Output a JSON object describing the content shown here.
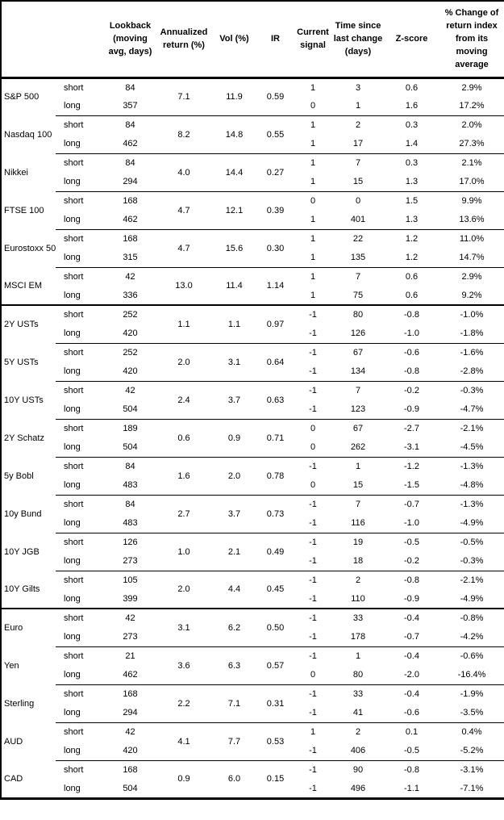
{
  "table": {
    "columns": [
      {
        "key": "name",
        "label": ""
      },
      {
        "key": "horizon",
        "label": ""
      },
      {
        "key": "lookback",
        "label": "Lookback\n(moving\navg, days)"
      },
      {
        "key": "annualized_return",
        "label": "Annualized\nreturn (%)"
      },
      {
        "key": "vol",
        "label": "Vol (%)"
      },
      {
        "key": "ir",
        "label": "IR"
      },
      {
        "key": "signal",
        "label": "Current\nsignal"
      },
      {
        "key": "time_since",
        "label": "Time since\nlast change\n(days)"
      },
      {
        "key": "z_score",
        "label": "Z-score"
      },
      {
        "key": "pct_change",
        "label": "% Change of\nreturn index\nfrom its\nmoving\naverage"
      }
    ],
    "groups": [
      {
        "name": "S&P 500",
        "separator": "none",
        "annualized_return": "7.1",
        "vol": "11.9",
        "ir": "0.59",
        "rows": [
          {
            "horizon": "short",
            "lookback": "84",
            "signal": "1",
            "time_since": "3",
            "z_score": "0.6",
            "pct_change": "2.9%"
          },
          {
            "horizon": "long",
            "lookback": "357",
            "signal": "0",
            "time_since": "1",
            "z_score": "1.6",
            "pct_change": "17.2%"
          }
        ]
      },
      {
        "name": "Nasdaq 100",
        "separator": "thin",
        "annualized_return": "8.2",
        "vol": "14.8",
        "ir": "0.55",
        "rows": [
          {
            "horizon": "short",
            "lookback": "84",
            "signal": "1",
            "time_since": "2",
            "z_score": "0.3",
            "pct_change": "2.0%"
          },
          {
            "horizon": "long",
            "lookback": "462",
            "signal": "1",
            "time_since": "17",
            "z_score": "1.4",
            "pct_change": "27.3%"
          }
        ]
      },
      {
        "name": "Nikkei",
        "separator": "thin",
        "annualized_return": "4.0",
        "vol": "14.4",
        "ir": "0.27",
        "rows": [
          {
            "horizon": "short",
            "lookback": "84",
            "signal": "1",
            "time_since": "7",
            "z_score": "0.3",
            "pct_change": "2.1%"
          },
          {
            "horizon": "long",
            "lookback": "294",
            "signal": "1",
            "time_since": "15",
            "z_score": "1.3",
            "pct_change": "17.0%"
          }
        ]
      },
      {
        "name": "FTSE 100",
        "separator": "thin",
        "annualized_return": "4.7",
        "vol": "12.1",
        "ir": "0.39",
        "rows": [
          {
            "horizon": "short",
            "lookback": "168",
            "signal": "0",
            "time_since": "0",
            "z_score": "1.5",
            "pct_change": "9.9%"
          },
          {
            "horizon": "long",
            "lookback": "462",
            "signal": "1",
            "time_since": "401",
            "z_score": "1.3",
            "pct_change": "13.6%"
          }
        ]
      },
      {
        "name": "Eurostoxx 50",
        "separator": "thin",
        "annualized_return": "4.7",
        "vol": "15.6",
        "ir": "0.30",
        "rows": [
          {
            "horizon": "short",
            "lookback": "168",
            "signal": "1",
            "time_since": "22",
            "z_score": "1.2",
            "pct_change": "11.0%"
          },
          {
            "horizon": "long",
            "lookback": "315",
            "signal": "1",
            "time_since": "135",
            "z_score": "1.2",
            "pct_change": "14.7%"
          }
        ]
      },
      {
        "name": "MSCI EM",
        "separator": "thin",
        "annualized_return": "13.0",
        "vol": "11.4",
        "ir": "1.14",
        "rows": [
          {
            "horizon": "short",
            "lookback": "42",
            "signal": "1",
            "time_since": "7",
            "z_score": "0.6",
            "pct_change": "2.9%"
          },
          {
            "horizon": "long",
            "lookback": "336",
            "signal": "1",
            "time_since": "75",
            "z_score": "0.6",
            "pct_change": "9.2%"
          }
        ]
      },
      {
        "name": "2Y USTs",
        "separator": "thick",
        "annualized_return": "1.1",
        "vol": "1.1",
        "ir": "0.97",
        "rows": [
          {
            "horizon": "short",
            "lookback": "252",
            "signal": "-1",
            "time_since": "80",
            "z_score": "-0.8",
            "pct_change": "-1.0%"
          },
          {
            "horizon": "long",
            "lookback": "420",
            "signal": "-1",
            "time_since": "126",
            "z_score": "-1.0",
            "pct_change": "-1.8%"
          }
        ]
      },
      {
        "name": "5Y USTs",
        "separator": "thin",
        "annualized_return": "2.0",
        "vol": "3.1",
        "ir": "0.64",
        "rows": [
          {
            "horizon": "short",
            "lookback": "252",
            "signal": "-1",
            "time_since": "67",
            "z_score": "-0.6",
            "pct_change": "-1.6%"
          },
          {
            "horizon": "long",
            "lookback": "420",
            "signal": "-1",
            "time_since": "134",
            "z_score": "-0.8",
            "pct_change": "-2.8%"
          }
        ]
      },
      {
        "name": "10Y USTs",
        "separator": "thin",
        "annualized_return": "2.4",
        "vol": "3.7",
        "ir": "0.63",
        "rows": [
          {
            "horizon": "short",
            "lookback": "42",
            "signal": "-1",
            "time_since": "7",
            "z_score": "-0.2",
            "pct_change": "-0.3%"
          },
          {
            "horizon": "long",
            "lookback": "504",
            "signal": "-1",
            "time_since": "123",
            "z_score": "-0.9",
            "pct_change": "-4.7%"
          }
        ]
      },
      {
        "name": "2Y Schatz",
        "separator": "thin",
        "annualized_return": "0.6",
        "vol": "0.9",
        "ir": "0.71",
        "rows": [
          {
            "horizon": "short",
            "lookback": "189",
            "signal": "0",
            "time_since": "67",
            "z_score": "-2.7",
            "pct_change": "-2.1%"
          },
          {
            "horizon": "long",
            "lookback": "504",
            "signal": "0",
            "time_since": "262",
            "z_score": "-3.1",
            "pct_change": "-4.5%"
          }
        ]
      },
      {
        "name": "5y Bobl",
        "separator": "thin",
        "annualized_return": "1.6",
        "vol": "2.0",
        "ir": "0.78",
        "rows": [
          {
            "horizon": "short",
            "lookback": "84",
            "signal": "-1",
            "time_since": "1",
            "z_score": "-1.2",
            "pct_change": "-1.3%"
          },
          {
            "horizon": "long",
            "lookback": "483",
            "signal": "0",
            "time_since": "15",
            "z_score": "-1.5",
            "pct_change": "-4.8%"
          }
        ]
      },
      {
        "name": "10y Bund",
        "separator": "thin",
        "annualized_return": "2.7",
        "vol": "3.7",
        "ir": "0.73",
        "rows": [
          {
            "horizon": "short",
            "lookback": "84",
            "signal": "-1",
            "time_since": "7",
            "z_score": "-0.7",
            "pct_change": "-1.3%"
          },
          {
            "horizon": "long",
            "lookback": "483",
            "signal": "-1",
            "time_since": "116",
            "z_score": "-1.0",
            "pct_change": "-4.9%"
          }
        ]
      },
      {
        "name": "10Y JGB",
        "separator": "thin",
        "annualized_return": "1.0",
        "vol": "2.1",
        "ir": "0.49",
        "rows": [
          {
            "horizon": "short",
            "lookback": "126",
            "signal": "-1",
            "time_since": "19",
            "z_score": "-0.5",
            "pct_change": "-0.5%"
          },
          {
            "horizon": "long",
            "lookback": "273",
            "signal": "-1",
            "time_since": "18",
            "z_score": "-0.2",
            "pct_change": "-0.3%"
          }
        ]
      },
      {
        "name": "10Y Gilts",
        "separator": "thin",
        "annualized_return": "2.0",
        "vol": "4.4",
        "ir": "0.45",
        "rows": [
          {
            "horizon": "short",
            "lookback": "105",
            "signal": "-1",
            "time_since": "2",
            "z_score": "-0.8",
            "pct_change": "-2.1%"
          },
          {
            "horizon": "long",
            "lookback": "399",
            "signal": "-1",
            "time_since": "110",
            "z_score": "-0.9",
            "pct_change": "-4.9%"
          }
        ]
      },
      {
        "name": "Euro",
        "separator": "thick",
        "annualized_return": "3.1",
        "vol": "6.2",
        "ir": "0.50",
        "rows": [
          {
            "horizon": "short",
            "lookback": "42",
            "signal": "-1",
            "time_since": "33",
            "z_score": "-0.4",
            "pct_change": "-0.8%"
          },
          {
            "horizon": "long",
            "lookback": "273",
            "signal": "-1",
            "time_since": "178",
            "z_score": "-0.7",
            "pct_change": "-4.2%"
          }
        ]
      },
      {
        "name": "Yen",
        "separator": "thin",
        "annualized_return": "3.6",
        "vol": "6.3",
        "ir": "0.57",
        "rows": [
          {
            "horizon": "short",
            "lookback": "21",
            "signal": "-1",
            "time_since": "1",
            "z_score": "-0.4",
            "pct_change": "-0.6%"
          },
          {
            "horizon": "long",
            "lookback": "462",
            "signal": "0",
            "time_since": "80",
            "z_score": "-2.0",
            "pct_change": "-16.4%"
          }
        ]
      },
      {
        "name": "Sterling",
        "separator": "thin",
        "annualized_return": "2.2",
        "vol": "7.1",
        "ir": "0.31",
        "rows": [
          {
            "horizon": "short",
            "lookback": "168",
            "signal": "-1",
            "time_since": "33",
            "z_score": "-0.4",
            "pct_change": "-1.9%"
          },
          {
            "horizon": "long",
            "lookback": "294",
            "signal": "-1",
            "time_since": "41",
            "z_score": "-0.6",
            "pct_change": "-3.5%"
          }
        ]
      },
      {
        "name": "AUD",
        "separator": "thin",
        "annualized_return": "4.1",
        "vol": "7.7",
        "ir": "0.53",
        "rows": [
          {
            "horizon": "short",
            "lookback": "42",
            "signal": "1",
            "time_since": "2",
            "z_score": "0.1",
            "pct_change": "0.4%"
          },
          {
            "horizon": "long",
            "lookback": "420",
            "signal": "-1",
            "time_since": "406",
            "z_score": "-0.5",
            "pct_change": "-5.2%"
          }
        ]
      },
      {
        "name": "CAD",
        "separator": "thin",
        "annualized_return": "0.9",
        "vol": "6.0",
        "ir": "0.15",
        "rows": [
          {
            "horizon": "short",
            "lookback": "168",
            "signal": "-1",
            "time_since": "90",
            "z_score": "-0.8",
            "pct_change": "-3.1%"
          },
          {
            "horizon": "long",
            "lookback": "504",
            "signal": "-1",
            "time_since": "496",
            "z_score": "-1.1",
            "pct_change": "-7.1%"
          }
        ]
      }
    ]
  }
}
